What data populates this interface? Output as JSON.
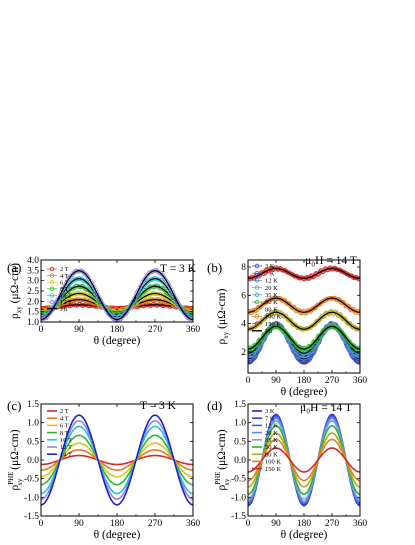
{
  "figure": {
    "panels": [
      {
        "id": "a",
        "label": "(a)",
        "annotation": "T = 3 K",
        "xlabel": "θ (degree)",
        "ylabel_main": "ρ",
        "ylabel_sub": "xy",
        "ylabel_unit": "(μΩ-cm)",
        "ylabel_sup": "",
        "xticks": [
          "0",
          "90",
          "180",
          "270",
          "360"
        ],
        "yticks": [
          "1.0",
          "1.5",
          "2.0",
          "2.5",
          "3.0",
          "3.5",
          "4.0"
        ],
        "legend": [
          "2 T",
          "4 T",
          "6 T",
          "8 T",
          "10 T",
          "12 T",
          "Fit"
        ]
      },
      {
        "id": "b",
        "label": "(b)",
        "annotation": "μ₀H = 14 T",
        "xlabel": "θ (degree)",
        "ylabel_main": "ρ",
        "ylabel_sub": "xy",
        "ylabel_unit": "(μΩ-cm)",
        "ylabel_sup": "",
        "xticks": [
          "0",
          "90",
          "180",
          "270",
          "360"
        ],
        "yticks": [
          "2",
          "4",
          "6",
          "8"
        ],
        "legend": [
          "3 K",
          "7 K",
          "12 K",
          "20 K",
          "35 K",
          "50 K",
          "80 K",
          "100 K",
          "150 K",
          "Fit"
        ]
      },
      {
        "id": "c",
        "label": "(c)",
        "annotation": "T = 3 K",
        "xlabel": "θ (degree)",
        "ylabel_main": "ρ",
        "ylabel_sub": "xy",
        "ylabel_unit": "(μΩ-cm)",
        "ylabel_sup": "PHE",
        "xticks": [
          "0",
          "90",
          "180",
          "270",
          "360"
        ],
        "yticks": [
          "-1.5",
          "-1.0",
          "-0.5",
          "0.0",
          "0.5",
          "1.0",
          "1.5"
        ],
        "legend": [
          "2 T",
          "4 T",
          "6 T",
          "8 T",
          "10 T",
          "12 T",
          "14 T"
        ]
      },
      {
        "id": "d",
        "label": "(d)",
        "annotation": "μ₀H = 14 T",
        "xlabel": "θ (degree)",
        "ylabel_main": "ρ",
        "ylabel_sub": "xy",
        "ylabel_unit": "(μΩ-cm)",
        "ylabel_sup": "PHE",
        "xticks": [
          "0",
          "90",
          "180",
          "270",
          "360"
        ],
        "yticks": [
          "-1.5",
          "-1.0",
          "-0.5",
          "0.0",
          "0.5",
          "1.0",
          "1.5"
        ],
        "legend": [
          "3 K",
          "7 K",
          "12 K",
          "20 K",
          "35 K",
          "50 K",
          "80 K",
          "100 K",
          "150 K"
        ]
      }
    ]
  },
  "chart_data": [
    {
      "type": "scatter",
      "panel": "a",
      "xlim": [
        0,
        360
      ],
      "ylim": [
        1.0,
        4.0
      ],
      "fit_model": "y = offset + amp * sin(2*(θ - 45°))",
      "series": [
        {
          "name": "2 T",
          "color": "#d62728",
          "marker": "circle-open",
          "offset": 1.75,
          "amp": 0.08
        },
        {
          "name": "4 T",
          "color": "#e87a1e",
          "marker": "circle-open",
          "offset": 1.83,
          "amp": 0.25
        },
        {
          "name": "6 T",
          "color": "#d8c61a",
          "marker": "circle-open",
          "offset": 1.93,
          "amp": 0.45
        },
        {
          "name": "8 T",
          "color": "#2fb52f",
          "marker": "circle-open",
          "offset": 2.05,
          "amp": 0.68
        },
        {
          "name": "10 T",
          "color": "#22c4d6",
          "marker": "circle-open",
          "offset": 2.17,
          "amp": 0.93
        },
        {
          "name": "12 T",
          "color": "#8e86e0",
          "marker": "circle-open",
          "offset": 2.3,
          "amp": 1.18
        }
      ]
    },
    {
      "type": "scatter",
      "panel": "b",
      "xlim": [
        0,
        360
      ],
      "ylim": [
        0.5,
        8.5
      ],
      "fit_model": "y = offset + amp * sin(2*(θ - 45°))",
      "series": [
        {
          "name": "3 K",
          "color": "#3a3ad8",
          "marker": "circle-open",
          "offset": 2.6,
          "amp": 1.35
        },
        {
          "name": "7 K",
          "color": "#5050d8",
          "marker": "circle-open",
          "offset": 2.65,
          "amp": 1.28
        },
        {
          "name": "12 K",
          "color": "#4a84d8",
          "marker": "circle-open",
          "offset": 2.7,
          "amp": 1.18
        },
        {
          "name": "20 K",
          "color": "#5a9ae0",
          "marker": "circle-open",
          "offset": 2.78,
          "amp": 1.08
        },
        {
          "name": "35 K",
          "color": "#3aa0c0",
          "marker": "circle-open",
          "offset": 2.85,
          "amp": 0.95
        },
        {
          "name": "50 K",
          "color": "#2fb52f",
          "marker": "circle-open",
          "offset": 3.0,
          "amp": 0.8
        },
        {
          "name": "80 K",
          "color": "#b5a81a",
          "marker": "circle-open",
          "offset": 4.2,
          "amp": 0.6
        },
        {
          "name": "100 K",
          "color": "#e87a1e",
          "marker": "circle-open",
          "offset": 5.3,
          "amp": 0.5
        },
        {
          "name": "150 K",
          "color": "#d62728",
          "marker": "circle-open",
          "offset": 7.55,
          "amp": 0.35
        }
      ]
    },
    {
      "type": "line",
      "panel": "c",
      "xlim": [
        0,
        360
      ],
      "ylim": [
        -1.5,
        1.5
      ],
      "model": "y = amp * sin(2*(θ - 45°))",
      "series": [
        {
          "name": "2 T",
          "color": "#d62728",
          "amp": 0.12
        },
        {
          "name": "4 T",
          "color": "#e87a1e",
          "amp": 0.27
        },
        {
          "name": "6 T",
          "color": "#d8c61a",
          "amp": 0.45
        },
        {
          "name": "8 T",
          "color": "#2fb52f",
          "amp": 0.66
        },
        {
          "name": "10 T",
          "color": "#22c4d6",
          "amp": 0.9
        },
        {
          "name": "12 T",
          "color": "#8e86e0",
          "amp": 1.05
        },
        {
          "name": "14 T",
          "color": "#2222cc",
          "amp": 1.2
        }
      ]
    },
    {
      "type": "line",
      "panel": "d",
      "xlim": [
        0,
        360
      ],
      "ylim": [
        -1.5,
        1.5
      ],
      "model": "y = amp * sin(2*(θ - 45°))",
      "series": [
        {
          "name": "3 K",
          "color": "#2222cc",
          "amp": 1.22
        },
        {
          "name": "7 K",
          "color": "#3a3ad8",
          "amp": 1.2
        },
        {
          "name": "12 K",
          "color": "#4a5ae0",
          "amp": 1.17
        },
        {
          "name": "20 K",
          "color": "#5a8ae0",
          "amp": 1.12
        },
        {
          "name": "35 K",
          "color": "#6aa4e4",
          "amp": 1.05
        },
        {
          "name": "50 K",
          "color": "#2fb52f",
          "amp": 0.92
        },
        {
          "name": "80 K",
          "color": "#b5a81a",
          "amp": 0.72
        },
        {
          "name": "100 K",
          "color": "#e87a1e",
          "amp": 0.55
        },
        {
          "name": "150 K",
          "color": "#d62728",
          "amp": 0.32
        }
      ]
    }
  ]
}
